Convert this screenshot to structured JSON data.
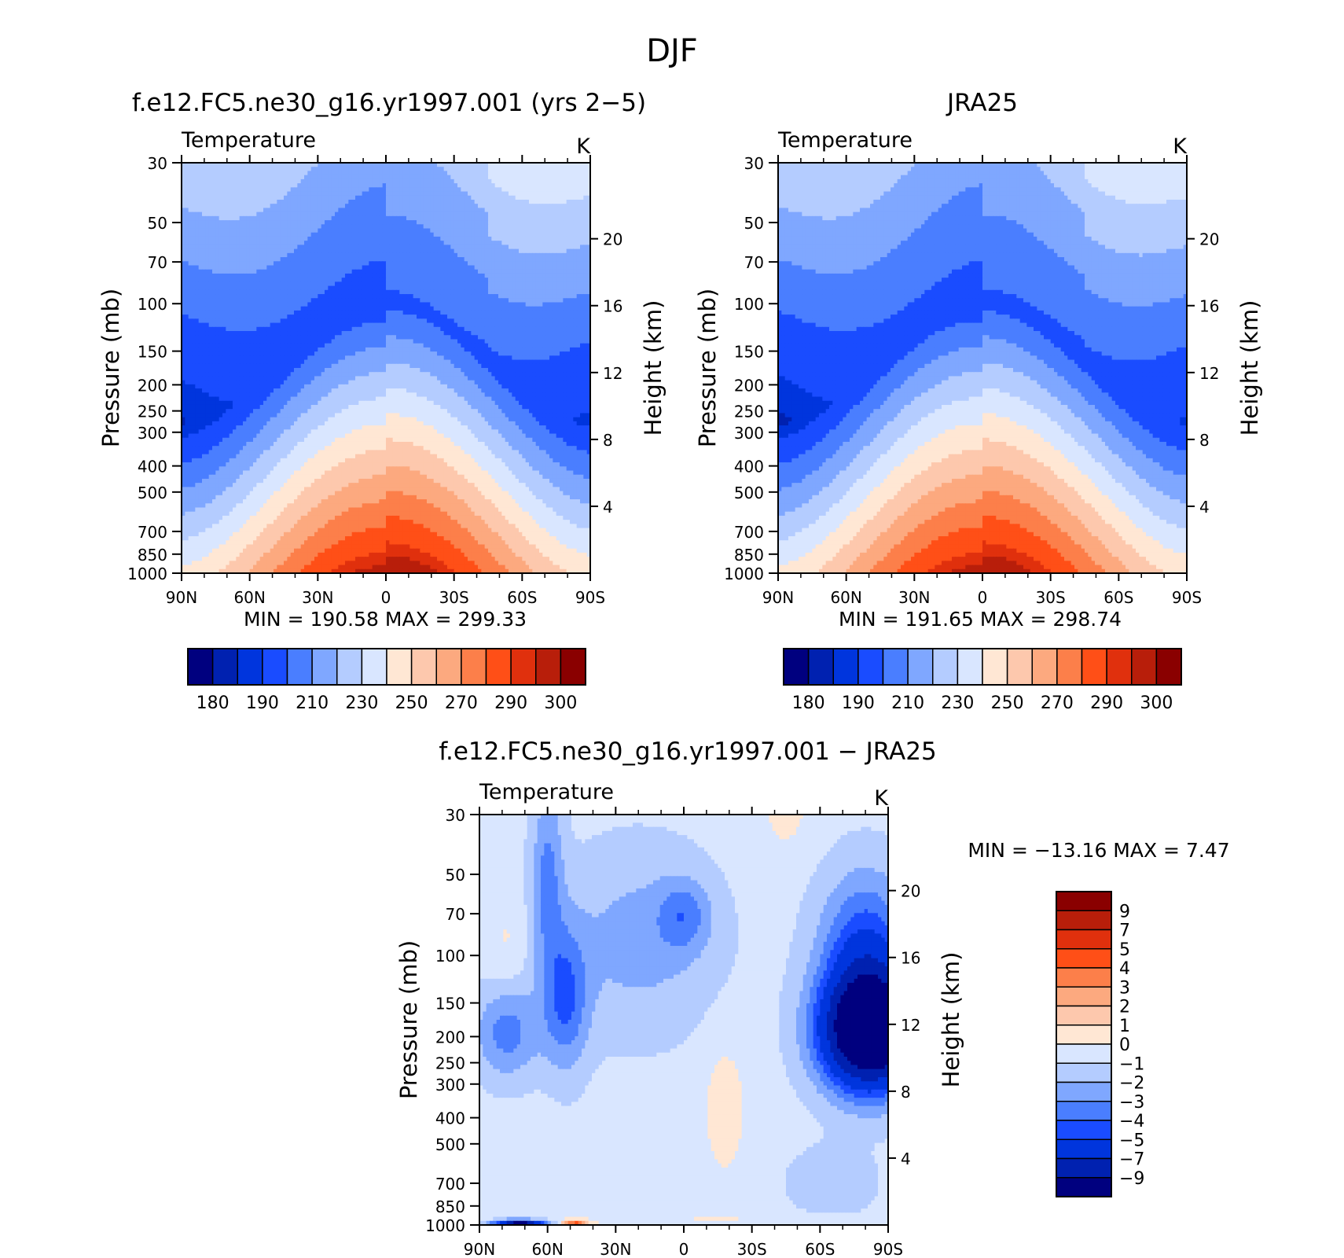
{
  "title": "DJF",
  "colors": {
    "main": [
      "#00007f",
      "#0021b0",
      "#0035dd",
      "#1a4cff",
      "#4a7eff",
      "#7fa7ff",
      "#b4ccff",
      "#d9e6ff",
      "#ffe7d4",
      "#fdc8ad",
      "#fca97f",
      "#fc7f4a",
      "#ff4f17",
      "#e0300d",
      "#b81e0a",
      "#8a0000"
    ],
    "diff": [
      "#00007f",
      "#0021b0",
      "#0035dd",
      "#1a4cff",
      "#4a7eff",
      "#7fa7ff",
      "#b4ccff",
      "#d9e6ff",
      "#ffe7d4",
      "#fdc8ad",
      "#fca97f",
      "#fc7f4a",
      "#ff4f17",
      "#e0300d",
      "#b81e0a",
      "#8a0000"
    ]
  },
  "panels": {
    "model": {
      "title": "f.e12.FC5.ne30_g16.yr1997.001 (yrs 2−5)",
      "variable": "Temperature",
      "units": "K",
      "ylabel": "Pressure (mb)",
      "y2label": "Height (km)",
      "minmax": "MIN =  190.58   MAX =  299.33"
    },
    "obs": {
      "title": "JRA25",
      "variable": "Temperature",
      "units": "K",
      "ylabel": "Pressure (mb)",
      "y2label": "Height (km)",
      "minmax": "MIN =  191.65   MAX =  298.74"
    },
    "diff": {
      "title": "f.e12.FC5.ne30_g16.yr1997.001 − JRA25",
      "variable": "Temperature",
      "units": "K",
      "ylabel": "Pressure (mb)",
      "y2label": "Height (km)",
      "minmax": "MIN = −13.16    MAX =     7.47"
    }
  },
  "axes": {
    "pressure_ticks": [
      "30",
      "50",
      "70",
      "100",
      "150",
      "200",
      "250",
      "300",
      "400",
      "500",
      "700",
      "850",
      "1000"
    ],
    "height_ticks": [
      "20",
      "16",
      "12",
      "8",
      "4"
    ],
    "lat_ticks": [
      "90N",
      "60N",
      "30N",
      "0",
      "30S",
      "60S",
      "90S"
    ]
  },
  "colorbars": {
    "main_labels": [
      "180",
      "190",
      "210",
      "230",
      "250",
      "270",
      "290",
      "300"
    ],
    "diff_labels": [
      "9",
      "7",
      "5",
      "4",
      "3",
      "2",
      "1",
      "0",
      "−1",
      "−2",
      "−3",
      "−4",
      "−5",
      "−7",
      "−9"
    ]
  },
  "chart_data": [
    {
      "type": "heatmap",
      "title": "f.e12.FC5.ne30_g16.yr1997.001 (yrs 2−5)",
      "subtitle": "Temperature",
      "units": "K",
      "xlabel": "",
      "ylabel": "Pressure (mb)",
      "y2label": "Height (km)",
      "x_range": [
        -90,
        90
      ],
      "y_range_pressure": [
        1000,
        30
      ],
      "min": 190.58,
      "max": 299.33,
      "levels": [
        180,
        185,
        190,
        200,
        210,
        220,
        230,
        240,
        250,
        260,
        270,
        280,
        290,
        295,
        300
      ],
      "colorbar_labels": [
        "180",
        "190",
        "210",
        "230",
        "250",
        "270",
        "290",
        "300"
      ],
      "features": [
        {
          "desc": "cold tropical tropopause minimum",
          "lat_center": 0,
          "pressure_range": [
            50,
            120
          ],
          "value_range": [
            190,
            200
          ]
        },
        {
          "desc": "warm tropical surface maximum",
          "lat_center": 0,
          "pressure_range": [
            850,
            1000
          ],
          "value_range": [
            295,
            300
          ]
        }
      ]
    },
    {
      "type": "heatmap",
      "title": "JRA25",
      "subtitle": "Temperature",
      "units": "K",
      "xlabel": "",
      "ylabel": "Pressure (mb)",
      "y2label": "Height (km)",
      "x_range": [
        -90,
        90
      ],
      "y_range_pressure": [
        1000,
        30
      ],
      "min": 191.65,
      "max": 298.74,
      "levels": [
        180,
        185,
        190,
        200,
        210,
        220,
        230,
        240,
        250,
        260,
        270,
        280,
        290,
        295,
        300
      ],
      "colorbar_labels": [
        "180",
        "190",
        "210",
        "230",
        "250",
        "270",
        "290",
        "300"
      ]
    },
    {
      "type": "heatmap",
      "title": "f.e12.FC5.ne30_g16.yr1997.001 − JRA25",
      "subtitle": "Temperature",
      "units": "K",
      "xlabel": "",
      "ylabel": "Pressure (mb)",
      "y2label": "Height (km)",
      "x_range": [
        -90,
        90
      ],
      "y_range_pressure": [
        1000,
        30
      ],
      "min": -13.16,
      "max": 7.47,
      "levels": [
        -9,
        -7,
        -5,
        -4,
        -3,
        -2,
        -1,
        0,
        1,
        2,
        3,
        4,
        5,
        7,
        9
      ],
      "colorbar_labels": [
        "9",
        "7",
        "5",
        "4",
        "3",
        "2",
        "1",
        "0",
        "−1",
        "−2",
        "−3",
        "−4",
        "−5",
        "−7",
        "−9"
      ],
      "features": [
        {
          "desc": "strong cold bias southern high latitudes upper troposphere",
          "lat_range": [
            -90,
            -55
          ],
          "pressure_range": [
            150,
            300
          ],
          "value_range": [
            -9,
            -13.16
          ]
        },
        {
          "desc": "weak warm bias near tropical tropopause",
          "lat_range": [
            -25,
            -5
          ],
          "pressure_range": [
            250,
            500
          ],
          "value_range": [
            0,
            1
          ]
        }
      ]
    }
  ]
}
